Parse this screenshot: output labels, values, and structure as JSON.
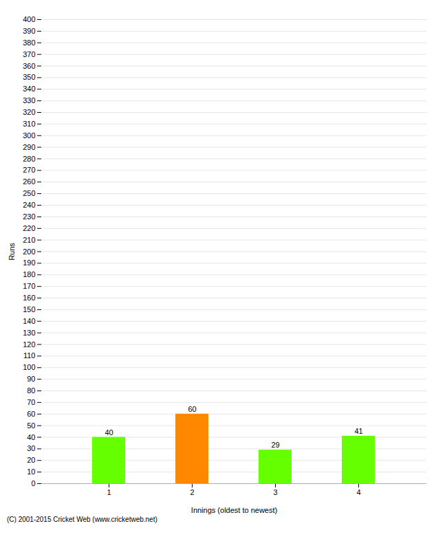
{
  "chart_data": {
    "type": "bar",
    "categories": [
      "1",
      "2",
      "3",
      "4"
    ],
    "values": [
      40,
      60,
      29,
      41
    ],
    "colors": [
      "#66ff00",
      "#ff8800",
      "#66ff00",
      "#66ff00"
    ],
    "xlabel": "Innings (oldest to newest)",
    "ylabel": "Runs",
    "ylim": [
      0,
      400
    ],
    "yticks": [
      0,
      10,
      20,
      30,
      40,
      50,
      60,
      70,
      80,
      90,
      100,
      110,
      120,
      130,
      140,
      150,
      160,
      170,
      180,
      190,
      200,
      210,
      220,
      230,
      240,
      250,
      260,
      270,
      280,
      290,
      300,
      310,
      320,
      330,
      340,
      350,
      360,
      370,
      380,
      390,
      400
    ],
    "grid": true,
    "data_labels": true,
    "caption": "(C) 2001-2015 Cricket Web (www.cricketweb.net)"
  }
}
